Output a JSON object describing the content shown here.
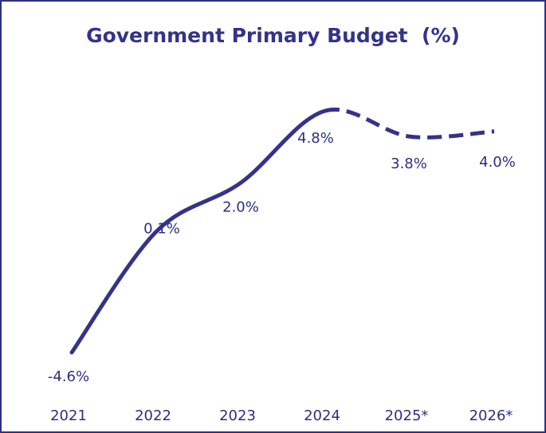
{
  "chart_data": {
    "type": "line",
    "title": "Government Primary Budget  (%)",
    "xlabel": "",
    "ylabel": "",
    "categories": [
      "2021",
      "2022",
      "2023",
      "2024",
      "2025*",
      "2026*"
    ],
    "values": [
      -4.6,
      0.1,
      2.0,
      4.8,
      3.8,
      4.0
    ],
    "data_labels": [
      "-4.6%",
      "0.1%",
      "2.0%",
      "4.8%",
      "3.8%",
      "4.0%"
    ],
    "projected_from_index": 3,
    "line_style_actual": "solid",
    "line_style_projected": "dashed",
    "smooth": true,
    "grid": false,
    "legend": "none",
    "color": "#33338a"
  }
}
